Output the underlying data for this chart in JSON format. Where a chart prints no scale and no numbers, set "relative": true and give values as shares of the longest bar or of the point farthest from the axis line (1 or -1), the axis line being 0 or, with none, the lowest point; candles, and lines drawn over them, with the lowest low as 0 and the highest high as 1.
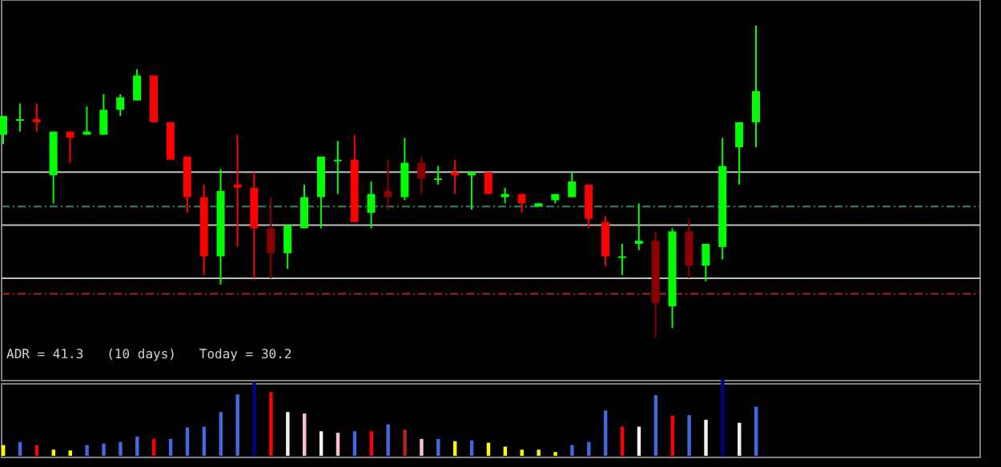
{
  "chart_data": [
    {
      "type": "candlestick",
      "relative": true,
      "categories": [
        null,
        null,
        null,
        null,
        null,
        null,
        null,
        null,
        null,
        null,
        null,
        null,
        null,
        null,
        null,
        null,
        null,
        null,
        null,
        null,
        null,
        null,
        null,
        null,
        null,
        null,
        null,
        null,
        null,
        null,
        null,
        null,
        null,
        null,
        null,
        null,
        null,
        null,
        null,
        null,
        null,
        null,
        null,
        null,
        null,
        null
      ],
      "ohlc": [
        [
          0.65,
          0.71,
          0.62,
          0.71
        ],
        [
          0.7,
          0.75,
          0.66,
          0.7
        ],
        [
          0.7,
          0.75,
          0.66,
          0.69
        ],
        [
          0.52,
          0.66,
          0.43,
          0.66
        ],
        [
          0.66,
          0.66,
          0.56,
          0.64
        ],
        [
          0.65,
          0.74,
          0.65,
          0.66
        ],
        [
          0.65,
          0.78,
          0.65,
          0.73
        ],
        [
          0.73,
          0.78,
          0.71,
          0.77
        ],
        [
          0.76,
          0.86,
          0.76,
          0.84
        ],
        [
          0.84,
          0.84,
          0.69,
          0.69
        ],
        [
          0.69,
          0.69,
          0.57,
          0.57
        ],
        [
          0.58,
          0.58,
          0.4,
          0.45
        ],
        [
          0.45,
          0.49,
          0.2,
          0.26
        ],
        [
          0.26,
          0.54,
          0.17,
          0.47
        ],
        [
          0.49,
          0.65,
          0.29,
          0.48
        ],
        [
          0.48,
          0.53,
          0.19,
          0.35
        ],
        [
          0.35,
          0.45,
          0.19,
          0.27
        ],
        [
          0.27,
          0.36,
          0.22,
          0.36
        ],
        [
          0.35,
          0.49,
          0.35,
          0.45
        ],
        [
          0.45,
          0.58,
          0.35,
          0.58
        ],
        [
          0.57,
          0.63,
          0.46,
          0.57
        ],
        [
          0.57,
          0.65,
          0.37,
          0.37
        ],
        [
          0.4,
          0.5,
          0.35,
          0.46
        ],
        [
          0.47,
          0.57,
          0.41,
          0.45
        ],
        [
          0.45,
          0.64,
          0.44,
          0.56
        ],
        [
          0.56,
          0.58,
          0.46,
          0.51
        ],
        [
          0.51,
          0.55,
          0.49,
          0.51
        ],
        [
          0.53,
          0.57,
          0.46,
          0.52
        ],
        [
          0.52,
          0.53,
          0.41,
          0.53
        ],
        [
          0.53,
          0.53,
          0.46,
          0.46
        ],
        [
          0.45,
          0.48,
          0.43,
          0.46
        ],
        [
          0.46,
          0.46,
          0.4,
          0.43
        ],
        [
          0.42,
          0.43,
          0.42,
          0.43
        ],
        [
          0.44,
          0.46,
          0.43,
          0.46
        ],
        [
          0.45,
          0.53,
          0.45,
          0.5
        ],
        [
          0.49,
          0.49,
          0.35,
          0.38
        ],
        [
          0.37,
          0.39,
          0.23,
          0.26
        ],
        [
          0.26,
          0.3,
          0.2,
          0.26
        ],
        [
          0.3,
          0.43,
          0.28,
          0.31
        ],
        [
          0.31,
          0.34,
          0,
          0.11
        ],
        [
          0.1,
          0.35,
          0.03,
          0.34
        ],
        [
          0.34,
          0.38,
          0.19,
          0.23
        ],
        [
          0.23,
          0.3,
          0.18,
          0.3
        ],
        [
          0.29,
          0.64,
          0.25,
          0.55
        ],
        [
          0.61,
          0.69,
          0.49,
          0.69
        ],
        [
          0.69,
          1,
          0.61,
          0.79
        ]
      ],
      "colors": [
        "#00ff00",
        "#00ff00",
        "#ff0000",
        "#00ff00",
        "#ff0000",
        "#00ff00",
        "#00ff00",
        "#00ff00",
        "#00ff00",
        "#ff0000",
        "#ff0000",
        "#ff0000",
        "#ff0000",
        "#00ff00",
        "#ff0000",
        "#ff0000",
        "#8b0000",
        "#00ff00",
        "#00ff00",
        "#00ff00",
        "#00ff00",
        "#ff0000",
        "#00ff00",
        "#8b0000",
        "#00ff00",
        "#8b0000",
        "#00ff00",
        "#ff0000",
        "#00ff00",
        "#ff0000",
        "#00ff00",
        "#ff0000",
        "#00ff00",
        "#00ff00",
        "#00ff00",
        "#ff0000",
        "#ff0000",
        "#00ff00",
        "#00ff00",
        "#8b0000",
        "#00ff00",
        "#8b0000",
        "#00ff00",
        "#00ff00",
        "#00ff00",
        "#00ff00"
      ],
      "ref_lines": [
        {
          "axis": "y",
          "value": 0.53,
          "color": "#c0c0c0",
          "line_style": "solid"
        },
        {
          "axis": "y",
          "value": 0.36,
          "color": "#c0c0c0",
          "line_style": "solid"
        },
        {
          "axis": "y",
          "value": 0.19,
          "color": "#c0c0c0",
          "line_style": "solid"
        },
        {
          "axis": "y",
          "value": 0.42,
          "color": "#2e8b57",
          "line_style": "dashdot"
        },
        {
          "axis": "y",
          "value": 0.14,
          "color": "#b22222",
          "line_style": "dashdot"
        }
      ],
      "annotations": [
        "ADR = 41.3   (10 days)   Today = 30.2"
      ]
    },
    {
      "type": "bar",
      "relative": true,
      "categories": [
        null,
        null,
        null,
        null,
        null,
        null,
        null,
        null,
        null,
        null,
        null,
        null,
        null,
        null,
        null,
        null,
        null,
        null,
        null,
        null,
        null,
        null,
        null,
        null,
        null,
        null,
        null,
        null,
        null,
        null,
        null,
        null,
        null,
        null,
        null,
        null,
        null,
        null,
        null,
        null,
        null,
        null,
        null,
        null,
        null,
        null
      ],
      "values": [
        0.14,
        0.18,
        0.14,
        0.08,
        0.07,
        0.14,
        0.16,
        0.18,
        0.25,
        0.22,
        0.22,
        0.37,
        0.38,
        0.57,
        0.8,
        0.95,
        0.83,
        0.57,
        0.55,
        0.32,
        0.3,
        0.32,
        0.32,
        0.41,
        0.34,
        0.22,
        0.22,
        0.19,
        0.2,
        0.17,
        0.12,
        0.08,
        0.08,
        0.05,
        0.14,
        0.18,
        0.59,
        0.38,
        0.38,
        0.79,
        0.52,
        0.53,
        0.47,
        1,
        0.43,
        0.64
      ],
      "colors": [
        "#ffff00",
        "#4169e1",
        "#ff0000",
        "#ffff00",
        "#ffff00",
        "#4169e1",
        "#4169e1",
        "#4169e1",
        "#4169e1",
        "#ff0000",
        "#4169e1",
        "#4169e1",
        "#4169e1",
        "#4169e1",
        "#4169e1",
        "#00008b",
        "#ff0000",
        "#f5f0f0",
        "#ffc0cb",
        "#f5f0f0",
        "#ffc0cb",
        "#4169e1",
        "#ff0000",
        "#4169e1",
        "#b22222",
        "#ffc0cb",
        "#4169e1",
        "#ffff00",
        "#4169e1",
        "#ffff00",
        "#ffff00",
        "#ffff00",
        "#ffff00",
        "#ffff00",
        "#4169e1",
        "#4169e1",
        "#4169e1",
        "#ff0000",
        "#f5f0f0",
        "#4169e1",
        "#ff0000",
        "#4169e1",
        "#f5f0f0",
        "#00008b",
        "#f5f0f0",
        "#4169e1"
      ]
    }
  ]
}
